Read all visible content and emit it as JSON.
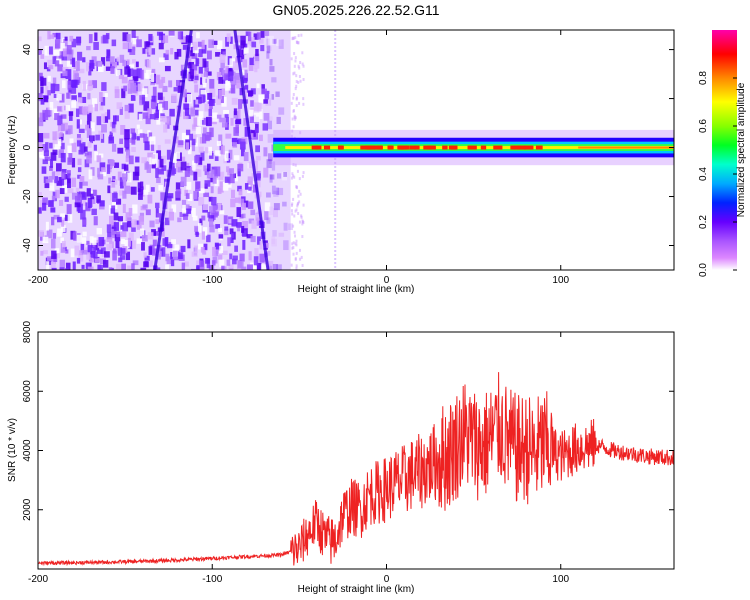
{
  "title": "GN05.2025.226.22.52.G11",
  "chart_data": [
    {
      "type": "heatmap",
      "xlabel": "Height of straight line (km)",
      "ylabel": "Frequency (Hz)",
      "xlim": [
        -200,
        165
      ],
      "ylim": [
        -50,
        48
      ],
      "xticks": [
        -200,
        -100,
        0,
        100
      ],
      "yticks": [
        -40,
        -20,
        0,
        20,
        40
      ],
      "colorbar": {
        "label": "Normalized spectral amplitude",
        "range": [
          0.0,
          1.0
        ],
        "ticks": [
          0.0,
          0.2,
          0.4,
          0.6,
          0.8
        ],
        "tick_labels": [
          "0.0",
          "0.2",
          "0.4",
          "0.6",
          "0.8"
        ],
        "colormap": [
          "#ffffff",
          "#dd88ff",
          "#aa55ff",
          "#6600ff",
          "#0022ff",
          "#00aaff",
          "#00ffcc",
          "#00ff22",
          "#88ff00",
          "#ffff00",
          "#ff8800",
          "#ff0000",
          "#ff00aa"
        ]
      },
      "signal_band": {
        "x_start": -65,
        "x_end": 165,
        "frequency_center": 0,
        "half_width": 4
      },
      "noise_region": {
        "x_start": -200,
        "x_end": -55
      },
      "diagonal_streaks": [
        {
          "x_top": -112,
          "x_bottom": -133
        },
        {
          "x_top": -87,
          "x_bottom": -68
        }
      ]
    },
    {
      "type": "line",
      "xlabel": "Height of straight line (km)",
      "ylabel": "SNR (10 * v/v)",
      "xlim": [
        -200,
        165
      ],
      "ylim": [
        0,
        8000
      ],
      "xticks": [
        -200,
        -100,
        0,
        100
      ],
      "yticks": [
        2000,
        4000,
        6000,
        8000
      ],
      "color": "#ee2222",
      "series": [
        {
          "x": [
            -200,
            -180,
            -160,
            -140,
            -120,
            -100,
            -80,
            -60,
            -50,
            -45,
            -40,
            -35,
            -30,
            -25,
            -20,
            -15,
            -10,
            -5,
            0,
            5,
            10,
            15,
            20,
            25,
            30,
            35,
            40,
            45,
            50,
            55,
            60,
            65,
            70,
            75,
            80,
            85,
            90,
            95,
            100,
            110,
            120,
            130,
            140,
            150,
            165
          ],
          "values": [
            200,
            210,
            230,
            260,
            300,
            360,
            420,
            480,
            700,
            1200,
            1600,
            1000,
            900,
            1800,
            2100,
            2000,
            2500,
            2600,
            2700,
            2900,
            3000,
            3200,
            3300,
            3500,
            3700,
            3800,
            4200,
            4600,
            4300,
            4100,
            4400,
            4800,
            4300,
            4000,
            4100,
            3900,
            4200,
            4000,
            3800,
            4100,
            4200,
            4000,
            3900,
            3800,
            3750
          ]
        }
      ]
    }
  ]
}
